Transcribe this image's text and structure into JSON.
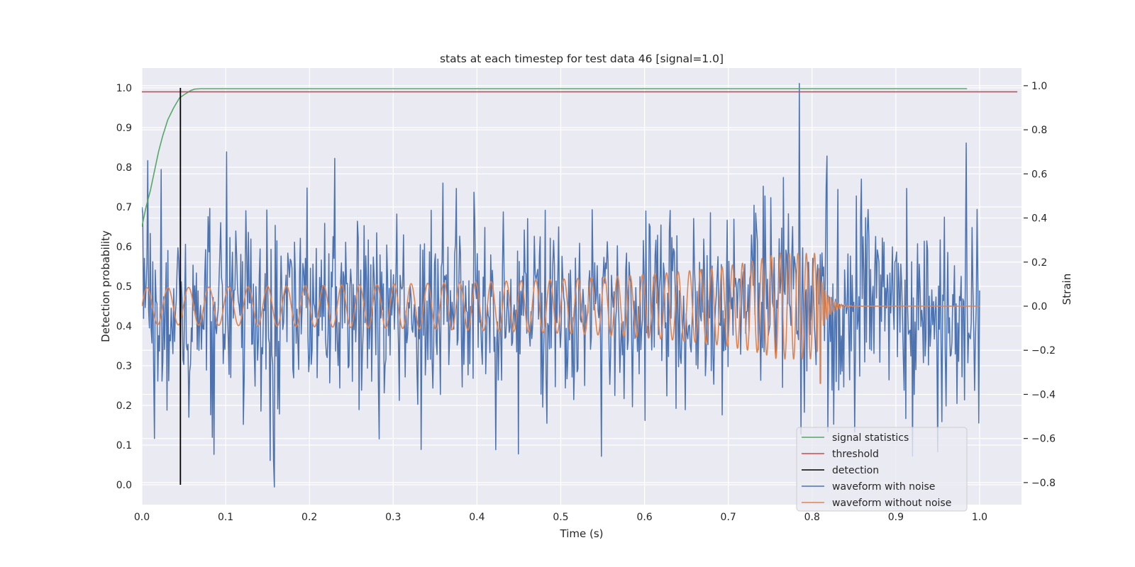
{
  "chart_data": {
    "type": "line",
    "title": "stats at each timestep for test data 46 [signal=1.0]",
    "xlabel": "Time (s)",
    "ylabel": "Detection probability",
    "y2label": "Strain",
    "xlim": [
      0.0,
      1.05
    ],
    "ylim": [
      -0.05,
      1.05
    ],
    "y2lim": [
      -0.9,
      1.08
    ],
    "xticks": [
      0.0,
      0.1,
      0.2,
      0.3,
      0.4,
      0.5,
      0.6,
      0.7,
      0.8,
      0.9,
      1.0
    ],
    "xtick_labels": [
      "0.0",
      "0.1",
      "0.2",
      "0.3",
      "0.4",
      "0.5",
      "0.6",
      "0.7",
      "0.8",
      "0.9",
      "1.0"
    ],
    "yticks": [
      0.0,
      0.1,
      0.2,
      0.3,
      0.4,
      0.5,
      0.6,
      0.7,
      0.8,
      0.9,
      1.0
    ],
    "ytick_labels": [
      "0.0",
      "0.1",
      "0.2",
      "0.3",
      "0.4",
      "0.5",
      "0.6",
      "0.7",
      "0.8",
      "0.9",
      "1.0"
    ],
    "y2ticks": [
      -0.8,
      -0.6,
      -0.4,
      -0.2,
      0.0,
      0.2,
      0.4,
      0.6,
      0.8,
      1.0
    ],
    "y2tick_labels": [
      "−0.8",
      "−0.6",
      "−0.4",
      "−0.2",
      "0.0",
      "0.2",
      "0.4",
      "0.6",
      "0.8",
      "1.0"
    ],
    "grid": true,
    "legend_position": "bottom-right",
    "colors": {
      "background": "#eaeaf2",
      "grid": "#ffffff",
      "signal_statistics": "#55a868",
      "threshold": "#c44e52",
      "detection": "#000000",
      "waveform_with_noise": "#4c72b0",
      "waveform_without_noise": "#dd8452"
    },
    "series": [
      {
        "name": "signal statistics",
        "axis": "left",
        "x": [
          0.0,
          0.002,
          0.005,
          0.01,
          0.015,
          0.02,
          0.025,
          0.031,
          0.038,
          0.045,
          0.052,
          0.058,
          0.063,
          0.07,
          0.08,
          0.1,
          0.2,
          0.4,
          0.6,
          0.8,
          0.985
        ],
        "y": [
          0.65,
          0.67,
          0.7,
          0.74,
          0.79,
          0.84,
          0.88,
          0.92,
          0.95,
          0.975,
          0.985,
          0.993,
          0.997,
          0.998,
          0.998,
          0.998,
          0.998,
          0.998,
          0.998,
          0.998,
          0.998
        ]
      },
      {
        "name": "threshold",
        "axis": "left",
        "x": [
          0.0,
          1.045
        ],
        "y": [
          0.99,
          0.99
        ]
      },
      {
        "name": "detection",
        "axis": "left",
        "x": [
          0.046,
          0.046
        ],
        "y": [
          0.0,
          1.0
        ]
      },
      {
        "name": "waveform with noise",
        "axis": "right",
        "generator": "noise",
        "seed": 46,
        "n": 1000,
        "x_range": [
          0.0,
          1.0
        ],
        "noise_std": 0.22,
        "spikes": [
          {
            "t": 0.001,
            "v": 0.42
          },
          {
            "t": 0.007,
            "v": 0.66
          },
          {
            "t": 0.015,
            "v": -0.6
          },
          {
            "t": 0.023,
            "v": 0.62
          },
          {
            "t": 0.101,
            "v": 0.7
          },
          {
            "t": 0.158,
            "v": -0.82
          },
          {
            "t": 0.23,
            "v": 0.67
          },
          {
            "t": 0.333,
            "v": -0.65
          },
          {
            "t": 0.449,
            "v": -0.67
          },
          {
            "t": 0.785,
            "v": 1.01
          },
          {
            "t": 0.787,
            "v": -0.58
          },
          {
            "t": 0.92,
            "v": -0.68
          },
          {
            "t": 0.95,
            "v": -0.66
          },
          {
            "t": 0.984,
            "v": 0.74
          },
          {
            "t": 0.999,
            "v": -0.53
          }
        ]
      },
      {
        "name": "waveform without noise",
        "axis": "right",
        "generator": "chirp",
        "x_range": [
          0.0,
          1.0
        ],
        "n": 3000,
        "t_merger": 0.805,
        "tau0": 1.24,
        "f0": 35,
        "amp0": 0.07,
        "ringdown_amp": 0.24,
        "ringdown_freq": 260,
        "ringdown_decay": 0.009,
        "dip_t": 0.81,
        "dip_v": -0.35
      }
    ]
  }
}
